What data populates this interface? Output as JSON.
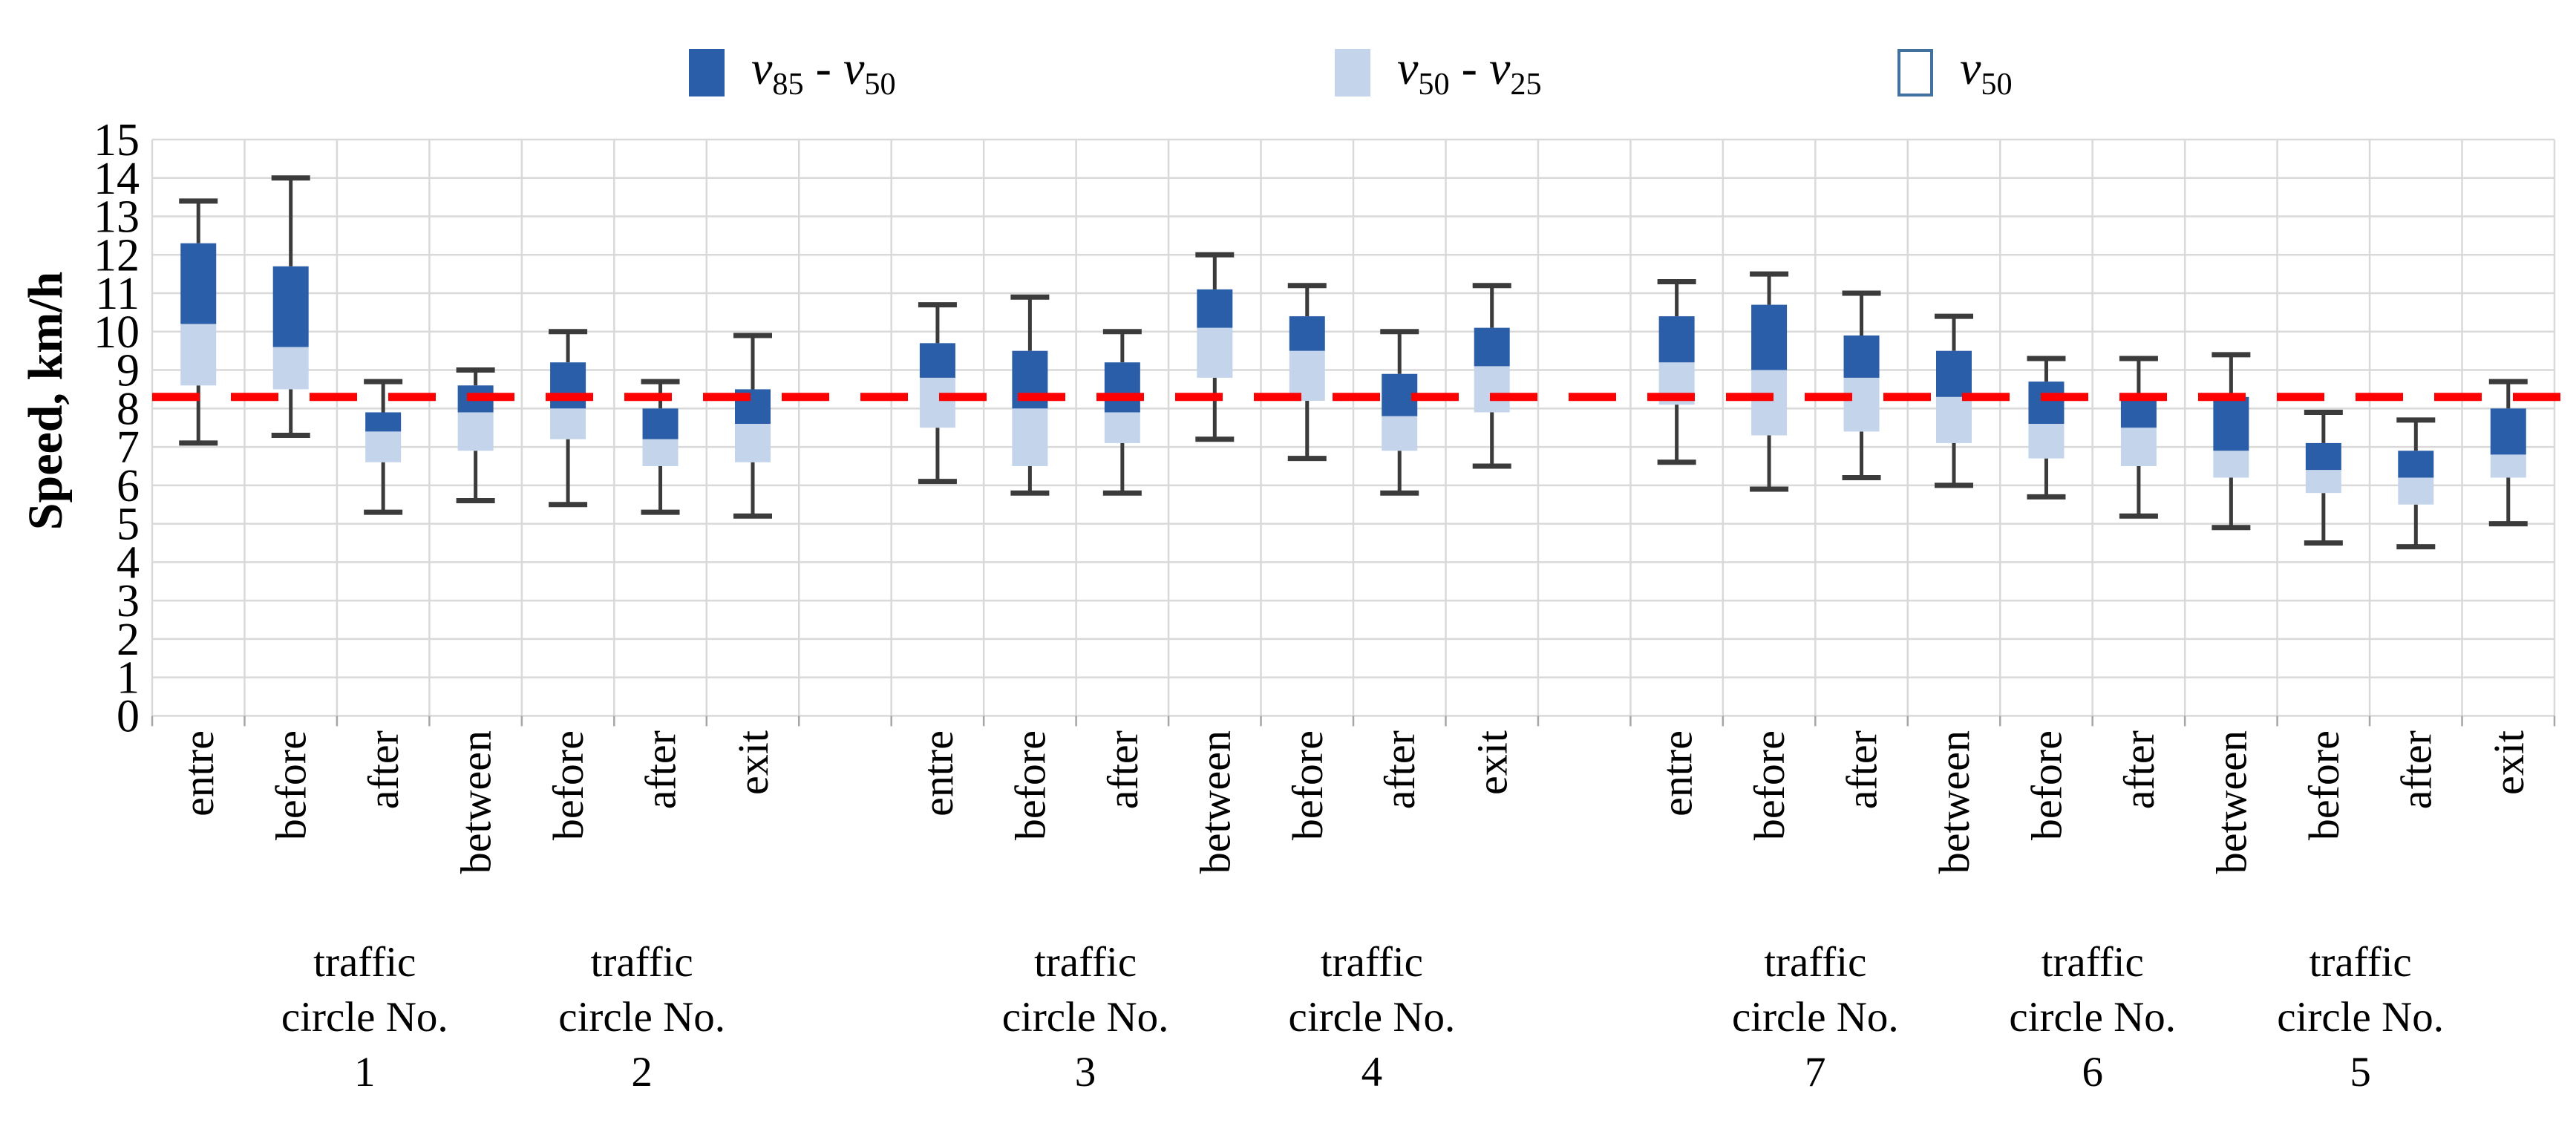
{
  "chart_data": {
    "type": "boxplot",
    "title": "",
    "ylabel": "Speed, km/h",
    "xlabel": "",
    "ylim": [
      0,
      15
    ],
    "ytick_step": 1,
    "grid": "on",
    "legend_position": "top",
    "colors": {
      "dark_box": "#2b5ea9",
      "light_box": "#c4d5eb",
      "whisker": "#3b3b3b",
      "gridline": "#d9d9d9",
      "axis_tick": "#a6a6a6",
      "reference_line": "#ff0000",
      "text": "#000000",
      "v50_swatch_border": "#41719c"
    },
    "legend": [
      {
        "label": "v85 - v50",
        "fill": "#2b5ea9",
        "border": "#2b5ea9",
        "x": 928
      },
      {
        "label": "v50 - v25",
        "fill": "#c4d5eb",
        "border": "#c4d5eb",
        "x": 1798
      },
      {
        "label": "v50",
        "fill": "#ffffff",
        "border": "#41719c",
        "x": 2556
      }
    ],
    "reference_line": {
      "value": 8.3,
      "style": "dashed"
    },
    "slots_total": 26,
    "boxes": [
      {
        "slot": 1,
        "label": "entre",
        "circle": "1",
        "lo": 7.1,
        "v25": 8.6,
        "v50": 10.2,
        "v85": 12.3,
        "hi": 13.4
      },
      {
        "slot": 2,
        "label": "before",
        "circle": "1",
        "lo": 7.3,
        "v25": 8.5,
        "v50": 9.6,
        "v85": 11.7,
        "hi": 14.0
      },
      {
        "slot": 3,
        "label": "after",
        "circle": "1",
        "lo": 5.3,
        "v25": 6.6,
        "v50": 7.4,
        "v85": 7.9,
        "hi": 8.7
      },
      {
        "slot": 4,
        "label": "between",
        "circle": "1-2",
        "lo": 5.6,
        "v25": 6.9,
        "v50": 7.9,
        "v85": 8.6,
        "hi": 9.0
      },
      {
        "slot": 5,
        "label": "before",
        "circle": "2",
        "lo": 5.5,
        "v25": 7.2,
        "v50": 8.0,
        "v85": 9.2,
        "hi": 10.0
      },
      {
        "slot": 6,
        "label": "after",
        "circle": "2",
        "lo": 5.3,
        "v25": 6.5,
        "v50": 7.2,
        "v85": 8.0,
        "hi": 8.7
      },
      {
        "slot": 7,
        "label": "exit",
        "circle": "2",
        "lo": 5.2,
        "v25": 6.6,
        "v50": 7.6,
        "v85": 8.5,
        "hi": 9.9
      },
      {
        "slot": 9,
        "label": "entre",
        "circle": "3",
        "lo": 6.1,
        "v25": 7.5,
        "v50": 8.8,
        "v85": 9.7,
        "hi": 10.7
      },
      {
        "slot": 10,
        "label": "before",
        "circle": "3",
        "lo": 5.8,
        "v25": 6.5,
        "v50": 8.0,
        "v85": 9.5,
        "hi": 10.9
      },
      {
        "slot": 11,
        "label": "after",
        "circle": "3",
        "lo": 5.8,
        "v25": 7.1,
        "v50": 7.9,
        "v85": 9.2,
        "hi": 10.0
      },
      {
        "slot": 12,
        "label": "between",
        "circle": "3-4",
        "lo": 7.2,
        "v25": 8.8,
        "v50": 10.1,
        "v85": 11.1,
        "hi": 12.0
      },
      {
        "slot": 13,
        "label": "before",
        "circle": "4",
        "lo": 6.7,
        "v25": 8.2,
        "v50": 9.5,
        "v85": 10.4,
        "hi": 11.2
      },
      {
        "slot": 14,
        "label": "after",
        "circle": "4",
        "lo": 5.8,
        "v25": 6.9,
        "v50": 7.8,
        "v85": 8.9,
        "hi": 10.0
      },
      {
        "slot": 15,
        "label": "exit",
        "circle": "4",
        "lo": 6.5,
        "v25": 7.9,
        "v50": 9.1,
        "v85": 10.1,
        "hi": 11.2
      },
      {
        "slot": 17,
        "label": "entre",
        "circle": "7",
        "lo": 6.6,
        "v25": 8.1,
        "v50": 9.2,
        "v85": 10.4,
        "hi": 11.3
      },
      {
        "slot": 18,
        "label": "before",
        "circle": "7",
        "lo": 5.9,
        "v25": 7.3,
        "v50": 9.0,
        "v85": 10.7,
        "hi": 11.5
      },
      {
        "slot": 19,
        "label": "after",
        "circle": "7",
        "lo": 6.2,
        "v25": 7.4,
        "v50": 8.8,
        "v85": 9.9,
        "hi": 11.0
      },
      {
        "slot": 20,
        "label": "between",
        "circle": "7-6",
        "lo": 6.0,
        "v25": 7.1,
        "v50": 8.3,
        "v85": 9.5,
        "hi": 10.4
      },
      {
        "slot": 21,
        "label": "before",
        "circle": "6",
        "lo": 5.7,
        "v25": 6.7,
        "v50": 7.6,
        "v85": 8.7,
        "hi": 9.3
      },
      {
        "slot": 22,
        "label": "after",
        "circle": "6",
        "lo": 5.2,
        "v25": 6.5,
        "v50": 7.5,
        "v85": 8.3,
        "hi": 9.3
      },
      {
        "slot": 23,
        "label": "between",
        "circle": "6-5",
        "lo": 4.9,
        "v25": 6.2,
        "v50": 6.9,
        "v85": 8.3,
        "hi": 9.4
      },
      {
        "slot": 24,
        "label": "before",
        "circle": "5",
        "lo": 4.5,
        "v25": 5.8,
        "v50": 6.4,
        "v85": 7.1,
        "hi": 7.9
      },
      {
        "slot": 25,
        "label": "after",
        "circle": "5",
        "lo": 4.4,
        "v25": 5.5,
        "v50": 6.2,
        "v85": 6.9,
        "hi": 7.7
      },
      {
        "slot": 26,
        "label": "exit",
        "circle": "5",
        "lo": 5.0,
        "v25": 6.2,
        "v50": 6.8,
        "v85": 8.0,
        "hi": 8.7
      }
    ],
    "groups": [
      {
        "lines": [
          "traffic",
          "circle No.",
          "1"
        ],
        "center_slot": 2.3
      },
      {
        "lines": [
          "traffic",
          "circle No.",
          "2"
        ],
        "center_slot": 5.3
      },
      {
        "lines": [
          "traffic",
          "circle No.",
          "3"
        ],
        "center_slot": 10.1
      },
      {
        "lines": [
          "traffic",
          "circle No.",
          "4"
        ],
        "center_slot": 13.2
      },
      {
        "lines": [
          "traffic",
          "circle No.",
          "7"
        ],
        "center_slot": 18.0
      },
      {
        "lines": [
          "traffic",
          "circle No.",
          "6"
        ],
        "center_slot": 21.0
      },
      {
        "lines": [
          "traffic",
          "circle No.",
          "5"
        ],
        "center_slot": 23.9
      }
    ]
  }
}
